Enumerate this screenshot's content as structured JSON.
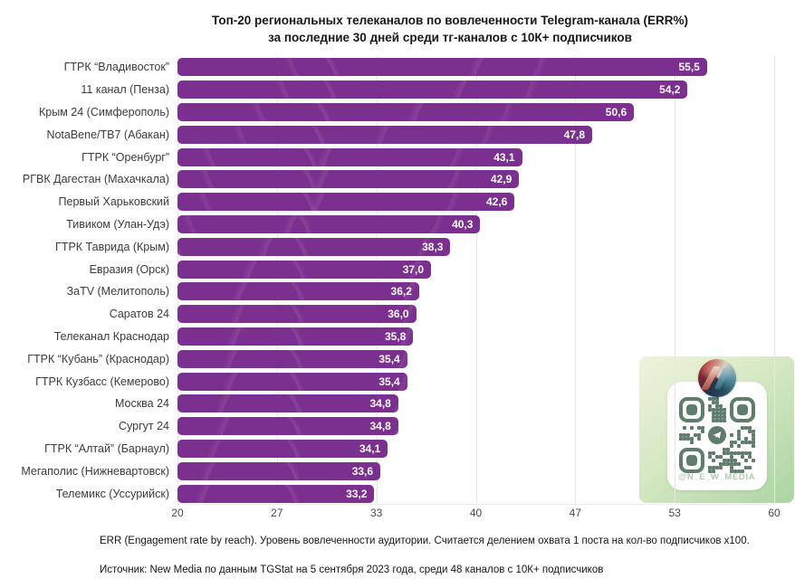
{
  "title": {
    "line1": "Топ-20 региональных телеканалов по вовлеченности Telegram-канала (ERR%)",
    "line2": "за последние 30 дней среди тг-каналов с 10К+ подписчиков"
  },
  "chart_data": {
    "type": "bar",
    "orientation": "horizontal",
    "categories": [
      "ГТРК “Владивосток”",
      "11 канал (Пенза)",
      "Крым 24 (Симферополь)",
      "NotaBene/ТВ7 (Абакан)",
      "ГТРК “Оренбург”",
      "РГВК Дагестан (Махачкала)",
      "Первый Харьковский",
      "Тивиком (Улан-Удэ)",
      "ГТРК Таврида (Крым)",
      "Евразия (Орск)",
      "ЗаTV (Мелитополь)",
      "Саратов 24",
      "Телеканал Краснодар",
      "ГТРК “Кубань” (Краснодар)",
      "ГТРК Кузбасс (Кемерово)",
      "Москва 24",
      "Сургут 24",
      "ГТРК “Алтай” (Барнаул)",
      "Мегаполис (Нижневартовск)",
      "Телемикс (Уссурийск)"
    ],
    "values": [
      55.5,
      54.2,
      50.6,
      47.8,
      43.1,
      42.9,
      42.6,
      40.3,
      38.3,
      37.0,
      36.2,
      36.0,
      35.8,
      35.4,
      35.4,
      34.8,
      34.8,
      34.1,
      33.6,
      33.2
    ],
    "value_labels": [
      "55,5",
      "54,2",
      "50,6",
      "47,8",
      "43,1",
      "42,9",
      "42,6",
      "40,3",
      "38,3",
      "37,0",
      "36,2",
      "36,0",
      "35,8",
      "35,4",
      "35,4",
      "34,8",
      "34,8",
      "34,1",
      "33,6",
      "33,2"
    ],
    "xlabel": "",
    "ylabel": "",
    "xlim": [
      20,
      60
    ],
    "xtick_labels": [
      "20",
      "27",
      "33",
      "40",
      "47",
      "53",
      "60"
    ],
    "grid": true,
    "bar_color": "#7b2f8e",
    "value_label_color": "#ffffff"
  },
  "footnotes": {
    "definition": "ERR (Engagement rate by reach). Уровень вовлеченности аудитории. Считается делением охвата 1 поста на кол-во подписчиков х100.",
    "source": "Источник: New Media по данным TGStat на 5 сентября 2023 года, среди 48 каналов с 10К+ подписчиков"
  },
  "qr": {
    "handle": "@N_E_W_MEDIA",
    "panel_color": "#ffffff",
    "module_color": "#5f7d6a",
    "block_gradient": [
      "#eff3dc",
      "#abd5a2"
    ]
  }
}
